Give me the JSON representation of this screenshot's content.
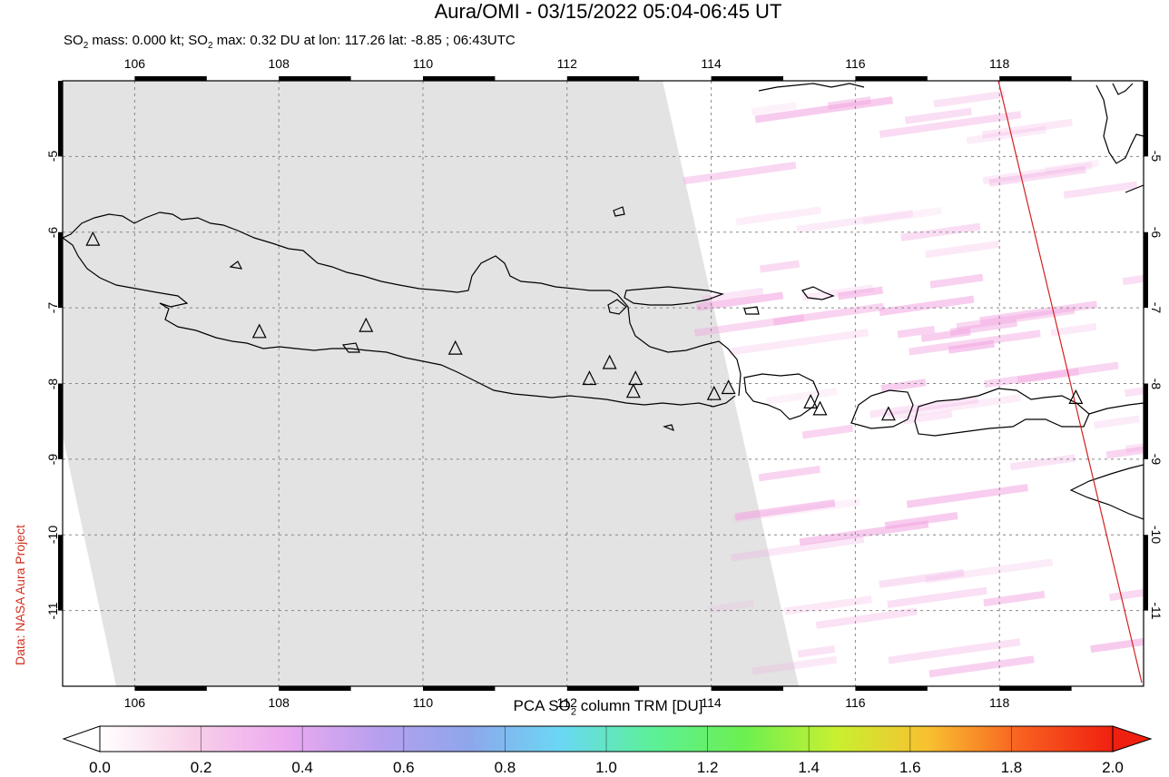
{
  "title": "Aura/OMI - 03/15/2022 05:04-06:45 UT",
  "subtitle": {
    "prefix": "SO",
    "sub": "2",
    "mid": " mass: 0.000 kt; SO",
    "sub2": "2",
    "rest": " max: 0.32 DU at lon: 117.26 lat: -8.85 ; 06:43UTC"
  },
  "credit": "Data: NASA Aura Project",
  "map": {
    "lon_min": 105,
    "lon_max": 120,
    "lat_min": -12,
    "lat_max": -4,
    "lon_ticks": [
      106,
      108,
      110,
      112,
      114,
      116,
      118
    ],
    "lon_tick_labels": [
      "106",
      "108",
      "110",
      "112",
      "114",
      "116",
      "118"
    ],
    "lat_ticks": [
      -5,
      -6,
      -7,
      -8,
      -9,
      -10,
      -11
    ],
    "lat_tick_labels": [
      "-5",
      "-6",
      "-7",
      "-8",
      "-9",
      "-10",
      "-11"
    ],
    "volcanoes": [
      {
        "lon": 105.42,
        "lat": -6.1
      },
      {
        "lon": 107.73,
        "lat": -7.32
      },
      {
        "lon": 109.21,
        "lat": -7.24
      },
      {
        "lon": 110.45,
        "lat": -7.54
      },
      {
        "lon": 112.31,
        "lat": -7.94
      },
      {
        "lon": 112.59,
        "lat": -7.73
      },
      {
        "lon": 112.95,
        "lat": -7.94
      },
      {
        "lon": 112.92,
        "lat": -8.11
      },
      {
        "lon": 114.04,
        "lat": -8.14
      },
      {
        "lon": 114.24,
        "lat": -8.06
      },
      {
        "lon": 115.38,
        "lat": -8.25
      },
      {
        "lon": 115.51,
        "lat": -8.34
      },
      {
        "lon": 116.46,
        "lat": -8.41
      },
      {
        "lon": 119.06,
        "lat": -8.19
      }
    ],
    "colors": {
      "no_data": "#e3e3e3",
      "grid": "#888888",
      "coast": "#000000",
      "orbit_line": "#d22020"
    }
  },
  "colorbar": {
    "title_prefix": "PCA SO",
    "title_sub": "2",
    "title_suffix": " column TRM [DU]",
    "ticks": [
      0.0,
      0.2,
      0.4,
      0.6,
      0.8,
      1.0,
      1.2,
      1.4,
      1.6,
      1.8,
      2.0
    ],
    "tick_labels": [
      "0.0",
      "0.2",
      "0.4",
      "0.6",
      "0.8",
      "1.0",
      "1.2",
      "1.4",
      "1.6",
      "1.8",
      "2.0"
    ],
    "min": 0.0,
    "max": 2.0,
    "color_stops": [
      "#ffffff",
      "#f8d0e8",
      "#ecaaf0",
      "#b8a0ee",
      "#8ea6ec",
      "#6ad8f4",
      "#5cf098",
      "#6cf050",
      "#c8f030",
      "#f8c030",
      "#f86020",
      "#f02010"
    ]
  }
}
